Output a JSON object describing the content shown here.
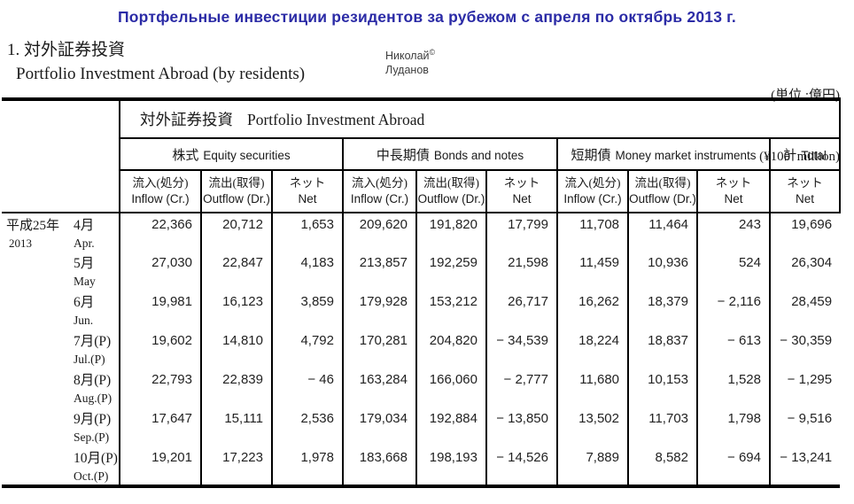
{
  "title": "Портфельные инвестиции резидентов за рубежом с апреля по октябрь 2013 г.",
  "header": {
    "section_jp": "1. 対外証券投資",
    "section_en": "Portfolio Investment Abroad (by residents)",
    "watermark_name": "Николай",
    "watermark_copyright": "©",
    "watermark_surname": "Луданов",
    "unit_jp": "(単位 :億円)",
    "unit_en": "(¥100  million)"
  },
  "table": {
    "span_title_jp": "対外証券投資",
    "span_title_en": "Portfolio Investment Abroad",
    "groups": [
      {
        "jp": "株式",
        "en": "Equity securities"
      },
      {
        "jp": "中長期債",
        "en": "Bonds and notes"
      },
      {
        "jp": "短期債",
        "en": "Money market instruments"
      },
      {
        "jp": "計",
        "en": "Total"
      }
    ],
    "subheaders": [
      {
        "jp": "流入(処分)",
        "en": "Inflow (Cr.)"
      },
      {
        "jp": "流出(取得)",
        "en": "Outflow (Dr.)"
      },
      {
        "jp": "ネット",
        "en": "Net"
      },
      {
        "jp": "流入(処分)",
        "en": "Inflow (Cr.)"
      },
      {
        "jp": "流出(取得)",
        "en": "Outflow (Dr.)"
      },
      {
        "jp": "ネット",
        "en": "Net"
      },
      {
        "jp": "流入(処分)",
        "en": "Inflow (Cr.)"
      },
      {
        "jp": "流出(取得)",
        "en": "Outflow (Dr.)"
      },
      {
        "jp": "ネット",
        "en": "Net"
      },
      {
        "jp": "ネット",
        "en": "Net"
      }
    ],
    "rows": [
      {
        "era_jp": "平成25年",
        "era_en": "2013",
        "month_jp": "4月",
        "month_en": "Apr.",
        "values": [
          "22,366",
          "20,712",
          "1,653",
          "209,620",
          "191,820",
          "17,799",
          "11,708",
          "11,464",
          "243",
          "19,696"
        ]
      },
      {
        "month_jp": "5月",
        "month_en": "May",
        "values": [
          "27,030",
          "22,847",
          "4,183",
          "213,857",
          "192,259",
          "21,598",
          "11,459",
          "10,936",
          "524",
          "26,304"
        ]
      },
      {
        "month_jp": "6月",
        "month_en": "Jun.",
        "values": [
          "19,981",
          "16,123",
          "3,859",
          "179,928",
          "153,212",
          "26,717",
          "16,262",
          "18,379",
          "− 2,116",
          "28,459"
        ]
      },
      {
        "month_jp": "7月(P)",
        "month_en": "Jul.(P)",
        "values": [
          "19,602",
          "14,810",
          "4,792",
          "170,281",
          "204,820",
          "− 34,539",
          "18,224",
          "18,837",
          "− 613",
          "− 30,359"
        ]
      },
      {
        "month_jp": "8月(P)",
        "month_en": "Aug.(P)",
        "values": [
          "22,793",
          "22,839",
          "− 46",
          "163,284",
          "166,060",
          "− 2,777",
          "11,680",
          "10,153",
          "1,528",
          "− 1,295"
        ]
      },
      {
        "month_jp": "9月(P)",
        "month_en": "Sep.(P)",
        "values": [
          "17,647",
          "15,111",
          "2,536",
          "179,034",
          "192,884",
          "− 13,850",
          "13,502",
          "11,703",
          "1,798",
          "− 9,516"
        ]
      },
      {
        "month_jp": "10月(P)",
        "month_en": "Oct.(P)",
        "values": [
          "19,201",
          "17,223",
          "1,978",
          "183,668",
          "198,193",
          "− 14,526",
          "7,889",
          "8,582",
          "− 694",
          "− 13,241"
        ]
      }
    ]
  }
}
